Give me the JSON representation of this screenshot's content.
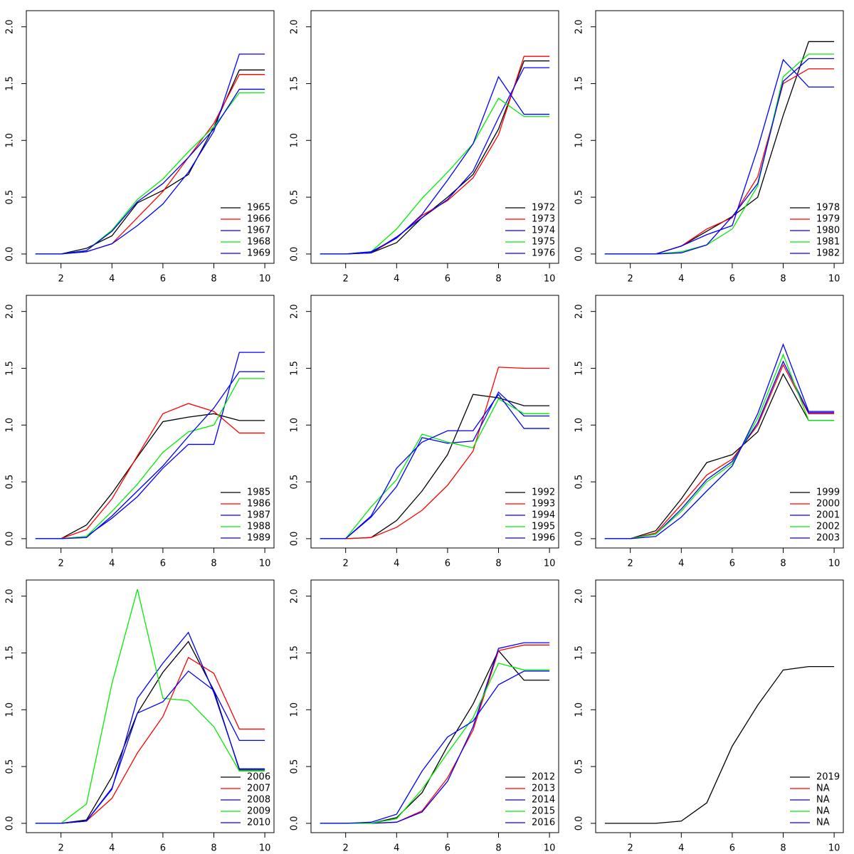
{
  "chart_data": [
    {
      "type": "line",
      "x": [
        1,
        2,
        3,
        4,
        5,
        6,
        7,
        8,
        9,
        10
      ],
      "xlim": [
        0.64,
        10.36
      ],
      "ylim": [
        -0.082,
        2.142
      ],
      "xticks": [
        2,
        4,
        6,
        8,
        10
      ],
      "yticks": [
        {
          "value": 0,
          "label": "0.0"
        },
        {
          "value": 0.5,
          "label": "0.5"
        },
        {
          "value": 1,
          "label": "1.0"
        },
        {
          "value": 1.5,
          "label": "1.5"
        },
        {
          "value": 2,
          "label": "2.0"
        }
      ],
      "series": [
        {
          "name": "1965",
          "color": "#000000",
          "values": [
            0,
            0,
            0.05,
            0.16,
            0.45,
            0.56,
            0.7,
            1.12,
            1.62,
            1.62
          ]
        },
        {
          "name": "1966",
          "color": "#ff0000",
          "values": [
            0,
            0,
            0.02,
            0.09,
            0.32,
            0.55,
            0.85,
            1.15,
            1.58,
            1.58
          ]
        },
        {
          "name": "1967",
          "color": "#0000ff",
          "values": [
            0,
            0,
            0.02,
            0.09,
            0.25,
            0.44,
            0.72,
            1.08,
            1.76,
            1.76
          ]
        },
        {
          "name": "1968",
          "color": "#00ee00",
          "values": [
            0,
            0,
            0.03,
            0.21,
            0.48,
            0.66,
            0.9,
            1.12,
            1.42,
            1.42
          ]
        },
        {
          "name": "1969",
          "color": "#0000ff",
          "values": [
            0,
            0,
            0.03,
            0.2,
            0.46,
            0.62,
            0.85,
            1.1,
            1.45,
            1.45
          ]
        }
      ]
    },
    {
      "type": "line",
      "x": [
        1,
        2,
        3,
        4,
        5,
        6,
        7,
        8,
        9,
        10
      ],
      "xlim": [
        0.64,
        10.36
      ],
      "ylim": [
        -0.082,
        2.142
      ],
      "xticks": [
        2,
        4,
        6,
        8,
        10
      ],
      "yticks": [
        {
          "value": 0,
          "label": "0.0"
        },
        {
          "value": 0.5,
          "label": "0.5"
        },
        {
          "value": 1,
          "label": "1.0"
        },
        {
          "value": 1.5,
          "label": "1.5"
        },
        {
          "value": 2,
          "label": "2.0"
        }
      ],
      "series": [
        {
          "name": "1972",
          "color": "#000000",
          "values": [
            0,
            0,
            0.01,
            0.1,
            0.32,
            0.5,
            0.7,
            1.1,
            1.7,
            1.7
          ]
        },
        {
          "name": "1973",
          "color": "#ff0000",
          "values": [
            0,
            0,
            0.01,
            0.14,
            0.34,
            0.47,
            0.67,
            1.05,
            1.74,
            1.74
          ]
        },
        {
          "name": "1974",
          "color": "#0000ff",
          "values": [
            0,
            0,
            0.01,
            0.15,
            0.32,
            0.48,
            0.73,
            1.2,
            1.64,
            1.64
          ]
        },
        {
          "name": "1975",
          "color": "#00ee00",
          "values": [
            0,
            0,
            0.02,
            0.22,
            0.49,
            0.72,
            0.97,
            1.37,
            1.21,
            1.21
          ]
        },
        {
          "name": "1976",
          "color": "#0000ff",
          "values": [
            0,
            0,
            0.02,
            0.14,
            0.35,
            0.65,
            0.97,
            1.56,
            1.23,
            1.23
          ]
        }
      ]
    },
    {
      "type": "line",
      "x": [
        1,
        2,
        3,
        4,
        5,
        6,
        7,
        8,
        9,
        10
      ],
      "xlim": [
        0.64,
        10.36
      ],
      "ylim": [
        -0.082,
        2.142
      ],
      "xticks": [
        2,
        4,
        6,
        8,
        10
      ],
      "yticks": [
        {
          "value": 0,
          "label": "0.0"
        },
        {
          "value": 0.5,
          "label": "0.5"
        },
        {
          "value": 1,
          "label": "1.0"
        },
        {
          "value": 1.5,
          "label": "1.5"
        },
        {
          "value": 2,
          "label": "2.0"
        }
      ],
      "series": [
        {
          "name": "1978",
          "color": "#000000",
          "values": [
            0,
            0,
            0,
            0.07,
            0.2,
            0.33,
            0.5,
            1.22,
            1.87,
            1.87
          ]
        },
        {
          "name": "1979",
          "color": "#ff0000",
          "values": [
            0,
            0,
            0,
            0.07,
            0.22,
            0.32,
            0.68,
            1.5,
            1.63,
            1.63
          ]
        },
        {
          "name": "1980",
          "color": "#0000ff",
          "values": [
            0,
            0,
            0,
            0.07,
            0.17,
            0.25,
            0.93,
            1.71,
            1.47,
            1.47
          ]
        },
        {
          "name": "1981",
          "color": "#00ee00",
          "values": [
            0,
            0,
            0,
            0.02,
            0.08,
            0.22,
            0.6,
            1.56,
            1.76,
            1.76
          ]
        },
        {
          "name": "1982",
          "color": "#0000ff",
          "values": [
            0,
            0,
            0,
            0.01,
            0.08,
            0.33,
            0.62,
            1.52,
            1.72,
            1.72
          ]
        }
      ]
    },
    {
      "type": "line",
      "x": [
        1,
        2,
        3,
        4,
        5,
        6,
        7,
        8,
        9,
        10
      ],
      "xlim": [
        0.64,
        10.36
      ],
      "ylim": [
        -0.082,
        2.142
      ],
      "xticks": [
        2,
        4,
        6,
        8,
        10
      ],
      "yticks": [
        {
          "value": 0,
          "label": "0.0"
        },
        {
          "value": 0.5,
          "label": "0.5"
        },
        {
          "value": 1,
          "label": "1.0"
        },
        {
          "value": 1.5,
          "label": "1.5"
        },
        {
          "value": 2,
          "label": "2.0"
        }
      ],
      "series": [
        {
          "name": "1985",
          "color": "#000000",
          "values": [
            0,
            0,
            0.12,
            0.4,
            0.72,
            1.03,
            1.07,
            1.1,
            1.04,
            1.04
          ]
        },
        {
          "name": "1986",
          "color": "#ff0000",
          "values": [
            0,
            0,
            0.08,
            0.35,
            0.73,
            1.1,
            1.19,
            1.12,
            0.93,
            0.93
          ]
        },
        {
          "name": "1987",
          "color": "#0000ff",
          "values": [
            0,
            0,
            0.02,
            0.18,
            0.37,
            0.62,
            0.83,
            0.83,
            1.64,
            1.64
          ]
        },
        {
          "name": "1988",
          "color": "#00ee00",
          "values": [
            0,
            0,
            0.02,
            0.24,
            0.48,
            0.76,
            0.94,
            1.0,
            1.41,
            1.41
          ]
        },
        {
          "name": "1989",
          "color": "#0000ff",
          "values": [
            0,
            0,
            0.01,
            0.2,
            0.42,
            0.64,
            0.9,
            1.15,
            1.47,
            1.47
          ]
        }
      ]
    },
    {
      "type": "line",
      "x": [
        1,
        2,
        3,
        4,
        5,
        6,
        7,
        8,
        9,
        10
      ],
      "xlim": [
        0.64,
        10.36
      ],
      "ylim": [
        -0.082,
        2.142
      ],
      "xticks": [
        2,
        4,
        6,
        8,
        10
      ],
      "yticks": [
        {
          "value": 0,
          "label": "0.0"
        },
        {
          "value": 0.5,
          "label": "0.5"
        },
        {
          "value": 1,
          "label": "1.0"
        },
        {
          "value": 1.5,
          "label": "1.5"
        },
        {
          "value": 2,
          "label": "2.0"
        }
      ],
      "series": [
        {
          "name": "1992",
          "color": "#000000",
          "values": [
            0,
            0,
            0.01,
            0.16,
            0.42,
            0.74,
            1.27,
            1.24,
            1.17,
            1.17
          ]
        },
        {
          "name": "1993",
          "color": "#ff0000",
          "values": [
            0,
            0,
            0.01,
            0.1,
            0.25,
            0.47,
            0.77,
            1.51,
            1.5,
            1.5
          ]
        },
        {
          "name": "1994",
          "color": "#0000ff",
          "values": [
            0,
            0,
            0.19,
            0.46,
            0.89,
            0.84,
            0.86,
            1.29,
            1.08,
            1.08
          ]
        },
        {
          "name": "1995",
          "color": "#00ee00",
          "values": [
            0,
            0,
            0.28,
            0.52,
            0.92,
            0.85,
            0.8,
            1.23,
            1.1,
            1.1
          ]
        },
        {
          "name": "1996",
          "color": "#0000ff",
          "values": [
            0,
            0,
            0.2,
            0.62,
            0.85,
            0.95,
            0.95,
            1.27,
            0.97,
            0.97
          ]
        }
      ]
    },
    {
      "type": "line",
      "x": [
        1,
        2,
        3,
        4,
        5,
        6,
        7,
        8,
        9,
        10
      ],
      "xlim": [
        0.64,
        10.36
      ],
      "ylim": [
        -0.082,
        2.142
      ],
      "xticks": [
        2,
        4,
        6,
        8,
        10
      ],
      "yticks": [
        {
          "value": 0,
          "label": "0.0"
        },
        {
          "value": 0.5,
          "label": "0.5"
        },
        {
          "value": 1,
          "label": "1.0"
        },
        {
          "value": 1.5,
          "label": "1.5"
        },
        {
          "value": 2,
          "label": "2.0"
        }
      ],
      "series": [
        {
          "name": "1999",
          "color": "#000000",
          "values": [
            0,
            0,
            0.07,
            0.35,
            0.67,
            0.74,
            0.94,
            1.45,
            1.04,
            1.04
          ]
        },
        {
          "name": "2000",
          "color": "#ff0000",
          "values": [
            0,
            0,
            0.05,
            0.3,
            0.56,
            0.7,
            1.0,
            1.53,
            1.1,
            1.1
          ]
        },
        {
          "name": "2001",
          "color": "#0000ff",
          "values": [
            0,
            0,
            0.04,
            0.26,
            0.52,
            0.68,
            1.02,
            1.56,
            1.11,
            1.11
          ]
        },
        {
          "name": "2002",
          "color": "#00ee00",
          "values": [
            0,
            0,
            0.04,
            0.24,
            0.5,
            0.66,
            1.06,
            1.62,
            1.04,
            1.04
          ]
        },
        {
          "name": "2003",
          "color": "#0000ff",
          "values": [
            0,
            0,
            0.02,
            0.19,
            0.42,
            0.64,
            1.1,
            1.71,
            1.12,
            1.12
          ]
        }
      ]
    },
    {
      "type": "line",
      "x": [
        1,
        2,
        3,
        4,
        5,
        6,
        7,
        8,
        9,
        10
      ],
      "xlim": [
        0.64,
        10.36
      ],
      "ylim": [
        -0.082,
        2.142
      ],
      "xticks": [
        2,
        4,
        6,
        8,
        10
      ],
      "yticks": [
        {
          "value": 0,
          "label": "0.0"
        },
        {
          "value": 0.5,
          "label": "0.5"
        },
        {
          "value": 1,
          "label": "1.0"
        },
        {
          "value": 1.5,
          "label": "1.5"
        },
        {
          "value": 2,
          "label": "2.0"
        }
      ],
      "series": [
        {
          "name": "2006",
          "color": "#000000",
          "values": [
            0,
            0,
            0.03,
            0.41,
            0.97,
            1.33,
            1.6,
            1.17,
            0.47,
            0.47
          ]
        },
        {
          "name": "2007",
          "color": "#ff0000",
          "values": [
            0,
            0,
            0.02,
            0.22,
            0.62,
            0.94,
            1.46,
            1.32,
            0.83,
            0.83
          ]
        },
        {
          "name": "2008",
          "color": "#0000ff",
          "values": [
            0,
            0,
            0.02,
            0.3,
            1.1,
            1.41,
            1.68,
            1.15,
            0.48,
            0.48
          ]
        },
        {
          "name": "2009",
          "color": "#00ee00",
          "values": [
            0,
            0,
            0.17,
            1.23,
            2.06,
            1.1,
            1.08,
            0.85,
            0.46,
            0.46
          ]
        },
        {
          "name": "2010",
          "color": "#0000ff",
          "values": [
            0,
            0,
            0.02,
            0.31,
            0.97,
            1.07,
            1.34,
            1.17,
            0.73,
            0.73
          ]
        }
      ]
    },
    {
      "type": "line",
      "x": [
        1,
        2,
        3,
        4,
        5,
        6,
        7,
        8,
        9,
        10
      ],
      "xlim": [
        0.64,
        10.36
      ],
      "ylim": [
        -0.082,
        2.142
      ],
      "xticks": [
        2,
        4,
        6,
        8,
        10
      ],
      "yticks": [
        {
          "value": 0,
          "label": "0.0"
        },
        {
          "value": 0.5,
          "label": "0.5"
        },
        {
          "value": 1,
          "label": "1.0"
        },
        {
          "value": 1.5,
          "label": "1.5"
        },
        {
          "value": 2,
          "label": "2.0"
        }
      ],
      "series": [
        {
          "name": "2012",
          "color": "#000000",
          "values": [
            0,
            0,
            0,
            0.05,
            0.27,
            0.68,
            1.05,
            1.52,
            1.26,
            1.26
          ]
        },
        {
          "name": "2013",
          "color": "#ff0000",
          "values": [
            0,
            0,
            0,
            0.01,
            0.11,
            0.4,
            0.82,
            1.52,
            1.57,
            1.57
          ]
        },
        {
          "name": "2014",
          "color": "#0000ff",
          "values": [
            0,
            0,
            0,
            0.01,
            0.1,
            0.37,
            0.85,
            1.54,
            1.59,
            1.59
          ]
        },
        {
          "name": "2015",
          "color": "#00ee00",
          "values": [
            0,
            0,
            0,
            0.04,
            0.3,
            0.62,
            0.93,
            1.41,
            1.35,
            1.35
          ]
        },
        {
          "name": "2016",
          "color": "#0000ff",
          "values": [
            0,
            0,
            0.01,
            0.08,
            0.46,
            0.76,
            0.9,
            1.22,
            1.34,
            1.34
          ]
        }
      ]
    },
    {
      "type": "line",
      "x": [
        1,
        2,
        3,
        4,
        5,
        6,
        7,
        8,
        9,
        10
      ],
      "xlim": [
        0.64,
        10.36
      ],
      "ylim": [
        -0.082,
        2.142
      ],
      "xticks": [
        2,
        4,
        6,
        8,
        10
      ],
      "yticks": [
        {
          "value": 0,
          "label": "0.0"
        },
        {
          "value": 0.5,
          "label": "0.5"
        },
        {
          "value": 1,
          "label": "1.0"
        },
        {
          "value": 1.5,
          "label": "1.5"
        },
        {
          "value": 2,
          "label": "2.0"
        }
      ],
      "series": [
        {
          "name": "2019",
          "color": "#000000",
          "values": [
            0,
            0,
            0,
            0.02,
            0.18,
            0.68,
            1.04,
            1.35,
            1.38,
            1.38
          ]
        },
        {
          "name": "NA",
          "color": "#ff0000",
          "values": [
            null,
            null,
            null,
            null,
            null,
            null,
            null,
            null,
            null,
            null
          ]
        },
        {
          "name": "NA",
          "color": "#0000ff",
          "values": [
            null,
            null,
            null,
            null,
            null,
            null,
            null,
            null,
            null,
            null
          ]
        },
        {
          "name": "NA",
          "color": "#00ee00",
          "values": [
            null,
            null,
            null,
            null,
            null,
            null,
            null,
            null,
            null,
            null
          ]
        },
        {
          "name": "NA",
          "color": "#0000ff",
          "values": [
            null,
            null,
            null,
            null,
            null,
            null,
            null,
            null,
            null,
            null
          ]
        }
      ]
    }
  ]
}
